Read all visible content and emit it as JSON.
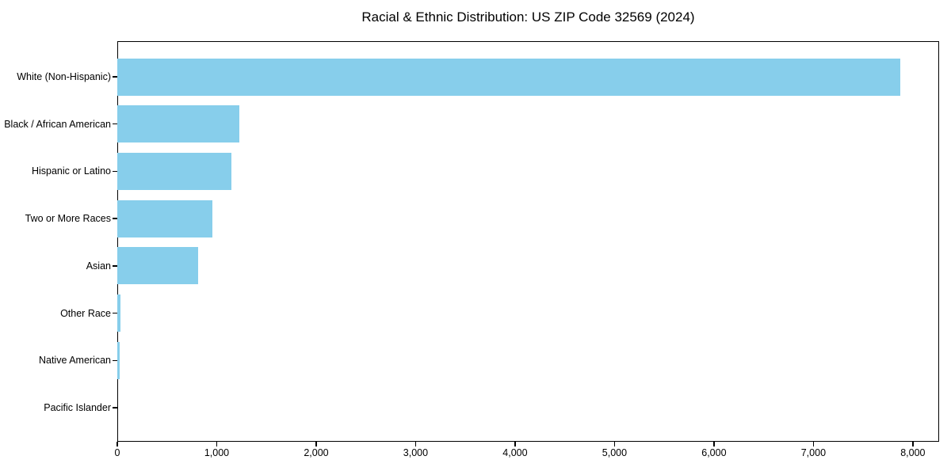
{
  "chart_data": {
    "type": "bar",
    "orientation": "horizontal",
    "title": "Racial & Ethnic Distribution: US ZIP Code 32569 (2024)",
    "categories": [
      "White (Non-Hispanic)",
      "Black / African American",
      "Hispanic or Latino",
      "Two or More Races",
      "Asian",
      "Other Race",
      "Native American",
      "Pacific Islander"
    ],
    "values": [
      7870,
      1230,
      1145,
      955,
      810,
      32,
      22,
      0
    ],
    "xlabel": "",
    "ylabel": "",
    "xlim": [
      0,
      8264
    ],
    "xticks": [
      0,
      1000,
      2000,
      3000,
      4000,
      5000,
      6000,
      7000,
      8000
    ],
    "xtick_labels": [
      "0",
      "1,000",
      "2,000",
      "3,000",
      "4,000",
      "5,000",
      "6,000",
      "7,000",
      "8,000"
    ],
    "grid": false,
    "legend": "none",
    "colors": {
      "bar": "#87CEEB",
      "spine": "#000000",
      "background": "#FFFFFF",
      "text": "#000000"
    }
  }
}
